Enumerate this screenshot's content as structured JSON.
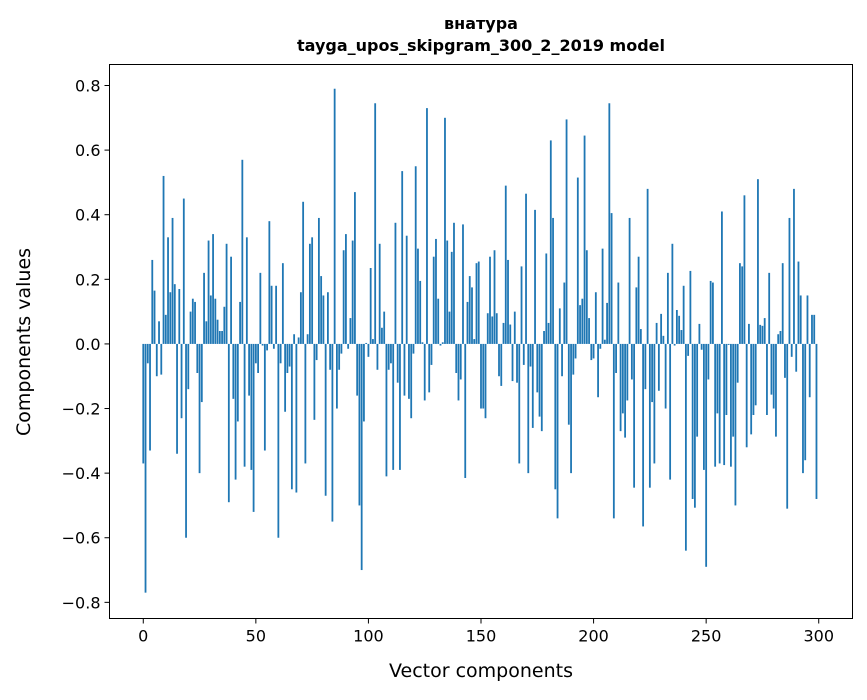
{
  "chart_data": {
    "type": "bar",
    "title_line1": "внатура",
    "title_line2": "tayga_upos_skipgram_300_2_2019 model",
    "xlabel": "Vector components",
    "ylabel": "Components values",
    "xlim": [
      -15,
      315
    ],
    "ylim": [
      -0.85,
      0.865
    ],
    "xticks": [
      0,
      50,
      100,
      150,
      200,
      250,
      300
    ],
    "xtick_labels": [
      "0",
      "50",
      "100",
      "150",
      "200",
      "250",
      "300"
    ],
    "yticks": [
      -0.8,
      -0.6,
      -0.4,
      -0.2,
      0.0,
      0.2,
      0.4,
      0.6,
      0.8
    ],
    "ytick_labels": [
      "−0.8",
      "−0.6",
      "−0.4",
      "−0.2",
      "0.0",
      "0.2",
      "0.4",
      "0.6",
      "0.8"
    ],
    "grid": false,
    "bar_color": "#1f77b4",
    "values": [
      -0.37,
      -0.77,
      -0.06,
      -0.33,
      0.26,
      0.165,
      -0.1,
      0.07,
      -0.095,
      0.52,
      0.09,
      0.33,
      0.16,
      0.39,
      0.185,
      -0.34,
      0.17,
      -0.23,
      0.45,
      -0.6,
      -0.14,
      0.1,
      0.14,
      0.13,
      -0.09,
      -0.4,
      -0.18,
      0.22,
      0.07,
      0.32,
      0.15,
      0.34,
      0.14,
      0.075,
      0.04,
      0.04,
      0.115,
      0.31,
      -0.49,
      0.27,
      -0.17,
      -0.42,
      -0.24,
      0.13,
      0.57,
      -0.38,
      0.33,
      -0.16,
      -0.39,
      -0.52,
      -0.06,
      -0.09,
      0.22,
      -0.005,
      -0.33,
      -0.02,
      0.38,
      0.18,
      -0.015,
      0.18,
      -0.6,
      -0.06,
      0.25,
      -0.21,
      -0.09,
      -0.07,
      -0.45,
      0.03,
      -0.46,
      0.02,
      0.16,
      0.44,
      -0.37,
      0.03,
      0.31,
      0.33,
      -0.235,
      -0.05,
      0.39,
      0.21,
      0.15,
      -0.47,
      0.16,
      -0.08,
      -0.55,
      0.79,
      -0.2,
      -0.08,
      -0.03,
      0.29,
      0.34,
      -0.015,
      0.08,
      0.32,
      0.47,
      -0.16,
      -0.5,
      -0.7,
      -0.24,
      0.003,
      -0.04,
      0.235,
      0.015,
      0.745,
      -0.08,
      0.31,
      0.05,
      0.1,
      -0.41,
      -0.08,
      -0.06,
      -0.39,
      0.375,
      -0.12,
      -0.39,
      0.535,
      -0.16,
      0.335,
      -0.17,
      -0.23,
      -0.03,
      0.55,
      0.295,
      0.195,
      0.005,
      -0.175,
      0.73,
      -0.15,
      -0.065,
      0.27,
      0.325,
      0.14,
      -0.005,
      0.005,
      0.7,
      0.32,
      0.1,
      0.285,
      0.375,
      -0.09,
      -0.175,
      -0.11,
      0.37,
      -0.415,
      0.13,
      0.21,
      0.175,
      0.015,
      0.25,
      0.255,
      -0.2,
      -0.2,
      -0.23,
      0.095,
      0.27,
      0.085,
      0.29,
      0.095,
      -0.1,
      -0.13,
      0.065,
      0.49,
      0.26,
      0.06,
      -0.115,
      0.1,
      -0.12,
      -0.37,
      0.24,
      -0.065,
      0.465,
      -0.4,
      -0.07,
      -0.26,
      0.415,
      -0.15,
      -0.225,
      -0.27,
      0.04,
      0.28,
      0.065,
      0.63,
      0.39,
      -0.45,
      -0.54,
      0.11,
      -0.1,
      0.19,
      0.695,
      -0.25,
      -0.4,
      -0.095,
      -0.045,
      0.515,
      0.12,
      0.14,
      0.645,
      0.29,
      0.08,
      -0.05,
      -0.045,
      0.16,
      -0.165,
      -0.015,
      0.295,
      0.013,
      0.127,
      0.745,
      0.405,
      -0.54,
      -0.09,
      0.19,
      -0.27,
      -0.215,
      -0.29,
      -0.175,
      0.39,
      -0.11,
      -0.445,
      0.175,
      0.27,
      0.046,
      -0.565,
      -0.14,
      0.48,
      -0.445,
      -0.18,
      -0.37,
      0.065,
      -0.145,
      0.093,
      0.025,
      -0.2,
      0.22,
      -0.42,
      0.31,
      -0.005,
      0.105,
      0.087,
      0.043,
      0.18,
      -0.64,
      -0.037,
      0.226,
      -0.48,
      -0.507,
      -0.287,
      0.062,
      -0.018,
      -0.39,
      -0.69,
      -0.11,
      0.195,
      0.19,
      -0.38,
      -0.215,
      -0.37,
      0.41,
      -0.375,
      -0.22,
      -0.003,
      -0.38,
      -0.287,
      -0.5,
      -0.12,
      0.25,
      0.24,
      0.46,
      -0.32,
      0.062,
      -0.28,
      -0.22,
      -0.19,
      0.51,
      0.059,
      0.056,
      0.08,
      -0.22,
      0.22,
      -0.157,
      -0.2,
      -0.287,
      0.03,
      0.04,
      0.25,
      -0.105,
      -0.51,
      0.39,
      -0.04,
      0.48,
      -0.086,
      0.255,
      0.15,
      -0.4,
      -0.36,
      0.15,
      -0.165,
      0.09,
      0.09,
      -0.48
    ]
  }
}
